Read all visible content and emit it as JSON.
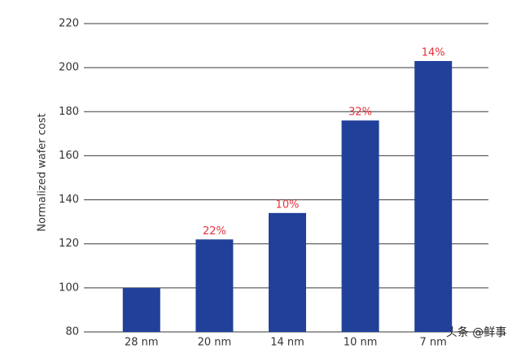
{
  "chart_data": {
    "type": "bar",
    "y_axis_label": "Normalized wafer cost",
    "categories": [
      "28 nm",
      "20 nm",
      "14 nm",
      "10 nm",
      "7 nm"
    ],
    "values": [
      100,
      122,
      134,
      176,
      203
    ],
    "annotations": [
      null,
      "22%",
      "10%",
      "32%",
      "14%"
    ],
    "color": "#21409a",
    "annotation_color": "#e8303a",
    "ylim": [
      80,
      220
    ],
    "yticks": [
      80,
      100,
      120,
      140,
      160,
      180,
      200,
      220
    ],
    "grid": true
  },
  "watermark": "头条 @鲜事"
}
